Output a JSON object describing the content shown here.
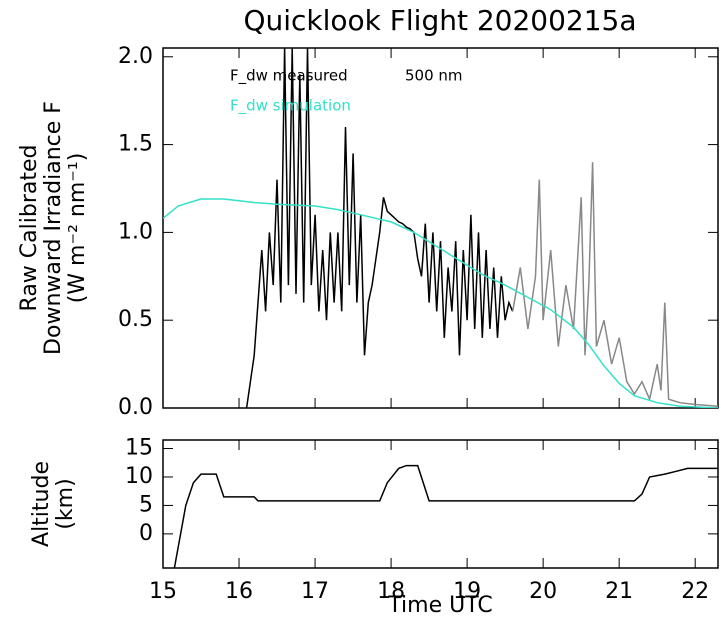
{
  "chart_data": [
    {
      "type": "line",
      "title": "Quicklook Flight 20200215a",
      "ylabel": [
        "Raw Calibrated",
        "Downward Irradiance F",
        "(W m⁻² nm⁻¹)"
      ],
      "annotation": "500 nm",
      "xlim": [
        15,
        22.3
      ],
      "ylim": [
        0,
        2.05
      ],
      "yticks": [
        {
          "value": 0,
          "label": "0.0"
        },
        0.5,
        {
          "value": 1,
          "label": "1.0"
        },
        1.5,
        {
          "value": 2,
          "label": "2.0"
        }
      ],
      "series": [
        {
          "name": "F_dw measured",
          "color": "#000000",
          "x": [
            16.1,
            16.2,
            16.25,
            16.3,
            16.35,
            16.4,
            16.45,
            16.5,
            16.55,
            16.6,
            16.65,
            16.7,
            16.75,
            16.8,
            16.85,
            16.9,
            16.95,
            17.0,
            17.05,
            17.1,
            17.15,
            17.2,
            17.25,
            17.3,
            17.35,
            17.4,
            17.45,
            17.5,
            17.55,
            17.6,
            17.65,
            17.7,
            17.75,
            17.8,
            17.85,
            17.9,
            17.95,
            18.0,
            18.05,
            18.1,
            18.15,
            18.2,
            18.25,
            18.3,
            18.35,
            18.4,
            18.45,
            18.5,
            18.55,
            18.6,
            18.65,
            18.7,
            18.75,
            18.8,
            18.85,
            18.9,
            18.95,
            19.0,
            19.05,
            19.1,
            19.15,
            19.2,
            19.25,
            19.3,
            19.35,
            19.4,
            19.45,
            19.5,
            19.55,
            19.6
          ],
          "values": [
            0,
            0.3,
            0.6,
            0.9,
            0.55,
            1.0,
            0.7,
            1.3,
            0.6,
            2.05,
            0.7,
            2.05,
            0.65,
            1.9,
            0.6,
            2.05,
            0.7,
            1.1,
            0.55,
            0.9,
            0.5,
            1.0,
            0.6,
            1.0,
            0.55,
            1.6,
            0.7,
            1.45,
            0.6,
            1.1,
            0.3,
            0.6,
            0.7,
            0.85,
            1.0,
            1.2,
            1.12,
            1.1,
            1.08,
            1.06,
            1.05,
            1.03,
            1.02,
            1.0,
            0.85,
            0.75,
            1.05,
            0.6,
            1.0,
            0.55,
            0.95,
            0.4,
            0.8,
            0.55,
            0.95,
            0.3,
            0.9,
            0.5,
            1.1,
            0.45,
            1.0,
            0.4,
            0.9,
            0.45,
            0.8,
            0.4,
            0.75,
            0.5,
            0.6,
            0.55
          ]
        },
        {
          "color": "#888888",
          "x": [
            19.6,
            19.7,
            19.8,
            19.9,
            19.95,
            20.0,
            20.1,
            20.2,
            20.3,
            20.4,
            20.5,
            20.55,
            20.6,
            20.65,
            20.7,
            20.8,
            20.9,
            21.0,
            21.1,
            21.2,
            21.3,
            21.4,
            21.5,
            21.55,
            21.6,
            21.65,
            21.8,
            22.0,
            22.3
          ],
          "values": [
            0.55,
            0.8,
            0.45,
            0.75,
            1.3,
            0.5,
            0.9,
            0.35,
            0.7,
            0.45,
            1.2,
            0.3,
            0.7,
            1.4,
            0.35,
            0.5,
            0.25,
            0.4,
            0.15,
            0.08,
            0.15,
            0.05,
            0.25,
            0.1,
            0.6,
            0.05,
            0.03,
            0.02,
            0.01
          ]
        },
        {
          "name": "F_dw simulation",
          "color": "#33e0c8",
          "x": [
            15,
            15.2,
            15.5,
            15.8,
            16.2,
            16.5,
            17,
            17.3,
            17.6,
            18,
            18.3,
            18.6,
            18.9,
            19.2,
            19.5,
            19.8,
            20.1,
            20.4,
            20.6,
            20.8,
            21.0,
            21.2,
            21.5,
            21.8,
            22.3
          ],
          "values": [
            1.08,
            1.15,
            1.19,
            1.19,
            1.17,
            1.16,
            1.15,
            1.13,
            1.1,
            1.06,
            1.0,
            0.92,
            0.84,
            0.76,
            0.7,
            0.63,
            0.56,
            0.46,
            0.36,
            0.24,
            0.14,
            0.07,
            0.03,
            0.01,
            0.0
          ]
        }
      ]
    },
    {
      "type": "line",
      "xlabel": "Time UTC",
      "ylabel": [
        "Altitude",
        "(km)"
      ],
      "xlim": [
        15,
        22.3
      ],
      "ylim": [
        -6,
        16.5
      ],
      "xticks": [
        15,
        16,
        17,
        18,
        19,
        20,
        21,
        22
      ],
      "yticks": [
        0,
        5,
        10,
        15
      ],
      "series": [
        {
          "color": "#000000",
          "x": [
            15.15,
            15.3,
            15.4,
            15.5,
            15.7,
            15.8,
            16.2,
            16.25,
            17.85,
            17.95,
            18.1,
            18.2,
            18.35,
            18.5,
            21.2,
            21.3,
            21.4,
            21.6,
            21.75,
            21.9,
            22.3
          ],
          "values": [
            -6,
            5,
            9,
            10.5,
            10.5,
            6.5,
            6.5,
            5.8,
            5.8,
            9,
            11.5,
            12,
            12,
            5.8,
            5.8,
            7,
            10,
            10.5,
            11,
            11.5,
            11.5
          ]
        }
      ]
    }
  ]
}
